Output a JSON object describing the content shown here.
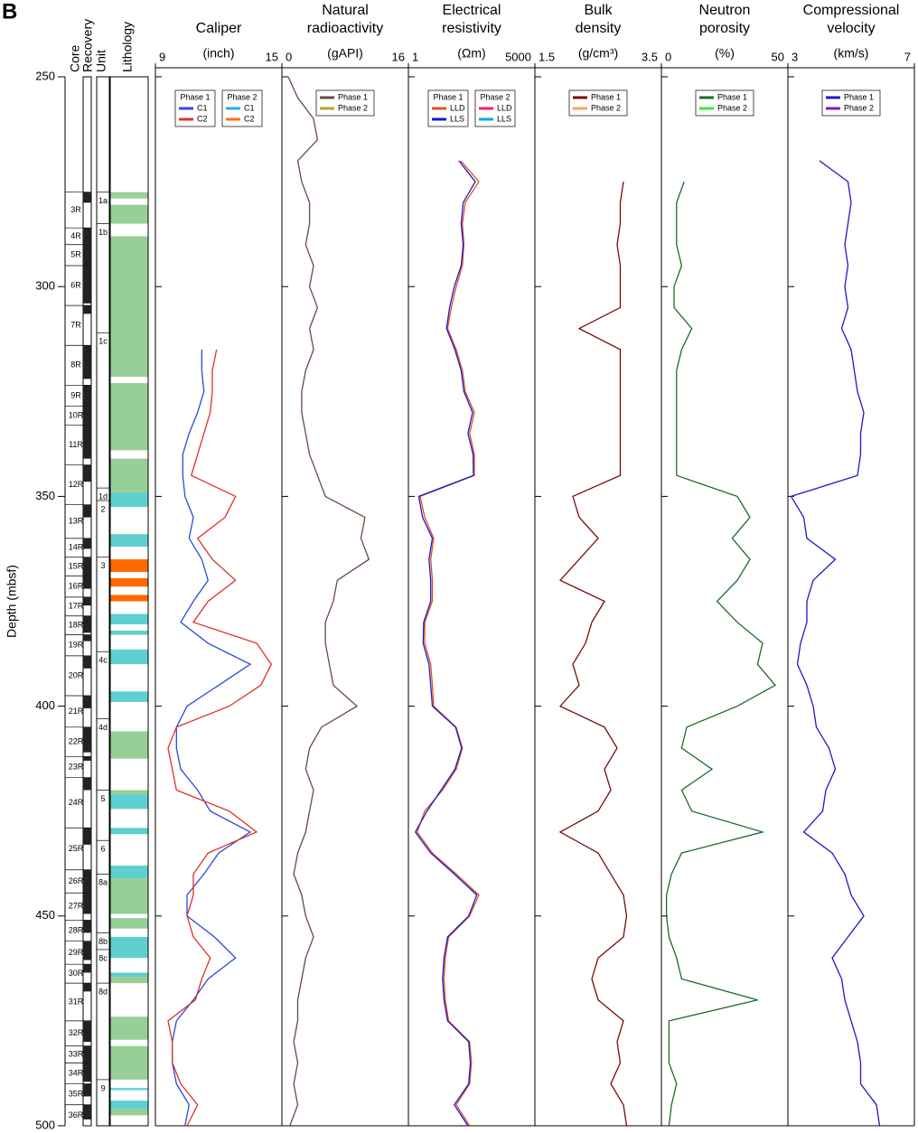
{
  "panel": "B",
  "chart_data": {
    "type": "well_log",
    "ylabel": "Depth (mbsf)",
    "ylim": [
      250,
      500
    ],
    "yticks": [
      250,
      300,
      350,
      400,
      450,
      500
    ],
    "column_headers": [
      "Core",
      "Recovery",
      "Unit",
      "Lithology"
    ],
    "depth": [
      250,
      255,
      260,
      265,
      270,
      275,
      280,
      285,
      290,
      295,
      300,
      305,
      310,
      315,
      320,
      325,
      330,
      335,
      340,
      345,
      350,
      355,
      360,
      365,
      370,
      375,
      380,
      385,
      390,
      395,
      400,
      405,
      410,
      415,
      420,
      425,
      430,
      435,
      440,
      445,
      450,
      455,
      460,
      465,
      470,
      475,
      480,
      485,
      490,
      495,
      500
    ],
    "cores": [
      {
        "label": "3R",
        "top": 277.5,
        "bottom": 286,
        "recovery": 2.5
      },
      {
        "label": "4R",
        "top": 286,
        "bottom": 290,
        "recovery": 4
      },
      {
        "label": "5R",
        "top": 290,
        "bottom": 295,
        "recovery": 5
      },
      {
        "label": "6R",
        "top": 295,
        "bottom": 304.5,
        "recovery": 9
      },
      {
        "label": "7R",
        "top": 304.5,
        "bottom": 314,
        "recovery": 2
      },
      {
        "label": "8R",
        "top": 314,
        "bottom": 323.5,
        "recovery": 8
      },
      {
        "label": "9R",
        "top": 323.5,
        "bottom": 328.5,
        "recovery": 5
      },
      {
        "label": "10R",
        "top": 328.5,
        "bottom": 333,
        "recovery": 4.5
      },
      {
        "label": "11R",
        "top": 333,
        "bottom": 342.5,
        "recovery": 8
      },
      {
        "label": "12R",
        "top": 342.5,
        "bottom": 352,
        "recovery": 4
      },
      {
        "label": "13R",
        "top": 352,
        "bottom": 360,
        "recovery": 3
      },
      {
        "label": "14R",
        "top": 360,
        "bottom": 364.5,
        "recovery": 2.5
      },
      {
        "label": "15R",
        "top": 364.5,
        "bottom": 369,
        "recovery": 4.5
      },
      {
        "label": "16R",
        "top": 369,
        "bottom": 374,
        "recovery": 3
      },
      {
        "label": "17R",
        "top": 374,
        "bottom": 378.5,
        "recovery": 2
      },
      {
        "label": "18R",
        "top": 378.5,
        "bottom": 383,
        "recovery": 4
      },
      {
        "label": "19R",
        "top": 383,
        "bottom": 388,
        "recovery": 1.5
      },
      {
        "label": "20R",
        "top": 388,
        "bottom": 397.5,
        "recovery": 3
      },
      {
        "label": "21R",
        "top": 397.5,
        "bottom": 405,
        "recovery": 3
      },
      {
        "label": "22R",
        "top": 405,
        "bottom": 412,
        "recovery": 6
      },
      {
        "label": "23R",
        "top": 412,
        "bottom": 417,
        "recovery": 1
      },
      {
        "label": "24R",
        "top": 417,
        "bottom": 429,
        "recovery": 3
      },
      {
        "label": "25R",
        "top": 429,
        "bottom": 439,
        "recovery": 4
      },
      {
        "label": "26R",
        "top": 439,
        "bottom": 444.5,
        "recovery": 5.5
      },
      {
        "label": "27R",
        "top": 444.5,
        "bottom": 451,
        "recovery": 5
      },
      {
        "label": "28R",
        "top": 451,
        "bottom": 456,
        "recovery": 3
      },
      {
        "label": "29R",
        "top": 456,
        "bottom": 461.5,
        "recovery": 4.5
      },
      {
        "label": "30R",
        "top": 461.5,
        "bottom": 466,
        "recovery": 2
      },
      {
        "label": "31R",
        "top": 466,
        "bottom": 475,
        "recovery": 2
      },
      {
        "label": "32R",
        "top": 475,
        "bottom": 481,
        "recovery": 5
      },
      {
        "label": "33R",
        "top": 481,
        "bottom": 485,
        "recovery": 4
      },
      {
        "label": "34R",
        "top": 485,
        "bottom": 490,
        "recovery": 4.5
      },
      {
        "label": "35R",
        "top": 490,
        "bottom": 495,
        "recovery": 3
      },
      {
        "label": "36R",
        "top": 495,
        "bottom": 500,
        "recovery": 3.5
      }
    ],
    "units": [
      {
        "label": "1a",
        "top": 277.5,
        "bottom": 285
      },
      {
        "label": "1b",
        "top": 285,
        "bottom": 311
      },
      {
        "label": "1c",
        "top": 311,
        "bottom": 348
      },
      {
        "label": "1d",
        "top": 348,
        "bottom": 351
      },
      {
        "label": "2",
        "top": 351,
        "bottom": 364.5
      },
      {
        "label": "3",
        "top": 364.5,
        "bottom": 387
      },
      {
        "label": "4c",
        "top": 387,
        "bottom": 403
      },
      {
        "label": "4d",
        "top": 403,
        "bottom": 420
      },
      {
        "label": "5",
        "top": 420,
        "bottom": 432
      },
      {
        "label": "6",
        "top": 432,
        "bottom": 440
      },
      {
        "label": "8a",
        "top": 440,
        "bottom": 454
      },
      {
        "label": "8b",
        "top": 454,
        "bottom": 458
      },
      {
        "label": "8c",
        "top": 458,
        "bottom": 466
      },
      {
        "label": "8d",
        "top": 466,
        "bottom": 489
      },
      {
        "label": "9",
        "top": 489,
        "bottom": 500
      }
    ],
    "lithology": [
      {
        "top": 277.5,
        "bottom": 279,
        "color": "#97cf97"
      },
      {
        "top": 280.5,
        "bottom": 285,
        "color": "#97cf97"
      },
      {
        "top": 288,
        "bottom": 321.5,
        "color": "#97cf97"
      },
      {
        "top": 323,
        "bottom": 339,
        "color": "#97cf97"
      },
      {
        "top": 341,
        "bottom": 349,
        "color": "#97cf97"
      },
      {
        "top": 349,
        "bottom": 352.5,
        "color": "#5fcfcf"
      },
      {
        "top": 359,
        "bottom": 362,
        "color": "#5fcfcf"
      },
      {
        "top": 365,
        "bottom": 368,
        "color": "#ff6a00"
      },
      {
        "top": 369.5,
        "bottom": 371.5,
        "color": "#ff6a00"
      },
      {
        "top": 373.5,
        "bottom": 375,
        "color": "#ff6a00"
      },
      {
        "top": 378,
        "bottom": 380.5,
        "color": "#5fcfcf"
      },
      {
        "top": 382,
        "bottom": 383,
        "color": "#5fcfcf"
      },
      {
        "top": 386.5,
        "bottom": 390,
        "color": "#5fcfcf"
      },
      {
        "top": 396.5,
        "bottom": 399,
        "color": "#5fcfcf"
      },
      {
        "top": 406,
        "bottom": 412.5,
        "color": "#97cf97"
      },
      {
        "top": 420,
        "bottom": 421,
        "color": "#97cf97"
      },
      {
        "top": 421,
        "bottom": 424.5,
        "color": "#5fcfcf"
      },
      {
        "top": 429,
        "bottom": 430.5,
        "color": "#5fcfcf"
      },
      {
        "top": 438,
        "bottom": 441,
        "color": "#5fcfcf"
      },
      {
        "top": 441,
        "bottom": 449.5,
        "color": "#97cf97"
      },
      {
        "top": 450.5,
        "bottom": 453,
        "color": "#97cf97"
      },
      {
        "top": 455,
        "bottom": 460,
        "color": "#5fcfcf"
      },
      {
        "top": 463.5,
        "bottom": 464.5,
        "color": "#5fcfcf"
      },
      {
        "top": 464.5,
        "bottom": 466,
        "color": "#97cf97"
      },
      {
        "top": 474,
        "bottom": 479.5,
        "color": "#97cf97"
      },
      {
        "top": 481,
        "bottom": 489,
        "color": "#97cf97"
      },
      {
        "top": 491,
        "bottom": 491.5,
        "color": "#5fcfcf"
      },
      {
        "top": 494,
        "bottom": 496,
        "color": "#5fcfcf"
      },
      {
        "top": 496,
        "bottom": 497.5,
        "color": "#97cf97"
      }
    ],
    "tracks": [
      {
        "title": [
          "Caliper"
        ],
        "unit": "(inch)",
        "xlim": [
          9,
          15
        ],
        "xticks": [
          9,
          15
        ],
        "series": [
          {
            "phase": "Phase 1",
            "name": "C1",
            "color": "#2a4bd8",
            "values": [
              null,
              null,
              null,
              null,
              null,
              null,
              null,
              null,
              null,
              null,
              null,
              null,
              null,
              11.2,
              11.2,
              11.3,
              11.0,
              10.6,
              10.3,
              10.3,
              10.4,
              10.8,
              10.6,
              11.2,
              11.5,
              10.8,
              10.2,
              11.5,
              13.5,
              12.0,
              10.5,
              10.0,
              10.0,
              10.2,
              11.0,
              11.6,
              13.5,
              12.0,
              11.3,
              10.5,
              10.5,
              11.8,
              12.8,
              11.5,
              10.8,
              10.0,
              9.8,
              9.8,
              10.0,
              10.6,
              10.4
            ]
          },
          {
            "phase": "Phase 1",
            "name": "C2",
            "color": "#e0302a",
            "values": [
              null,
              null,
              null,
              null,
              null,
              null,
              null,
              null,
              null,
              null,
              null,
              null,
              null,
              11.9,
              11.7,
              11.7,
              11.6,
              11.3,
              11.0,
              10.7,
              12.8,
              12.3,
              11.0,
              11.7,
              12.8,
              11.5,
              10.8,
              13.8,
              14.5,
              14.0,
              12.5,
              10.0,
              9.6,
              9.8,
              10.0,
              12.5,
              13.8,
              11.5,
              10.8,
              10.8,
              10.5,
              10.8,
              11.6,
              11.2,
              10.9,
              9.6,
              9.8,
              9.8,
              10.2,
              11.0,
              10.5
            ]
          },
          {
            "phase": "Phase 2",
            "name": "C1",
            "color": "#33a8f0"
          },
          {
            "phase": "Phase 2",
            "name": "C2",
            "color": "#ff6a1a"
          }
        ]
      },
      {
        "title": [
          "Natural",
          "radioactivity"
        ],
        "unit": "(gAPI)",
        "xlim": [
          0,
          16
        ],
        "xticks": [
          0,
          16
        ],
        "series": [
          {
            "name": "Phase 1",
            "color": "#6a4a3c",
            "values": [
              0.8,
              2.0,
              4.0,
              4.5,
              2.0,
              2.5,
              3.5,
              3.5,
              3.0,
              4.0,
              3.5,
              4.5,
              3.5,
              4.0,
              3.0,
              2.5,
              2.5,
              3.0,
              3.5,
              4.5,
              5.5,
              10.5,
              10.0,
              11.0,
              7.0,
              6.5,
              5.5,
              5.5,
              6.0,
              6.5,
              9.5,
              5.0,
              3.5,
              3.0,
              4.0,
              3.5,
              3.0,
              2.0,
              1.5,
              2.5,
              3.0,
              4.0,
              3.0,
              2.5,
              2.0,
              2.0,
              1.5,
              2.0,
              1.5,
              2.0,
              1.0
            ]
          },
          {
            "name": "Phase 2",
            "color": "#b8a030"
          }
        ]
      },
      {
        "title": [
          "Electrical",
          "resistivity"
        ],
        "unit": "(Ωm)",
        "xlim": [
          1,
          5000
        ],
        "xticks": [
          1,
          5000
        ],
        "scale": "log",
        "series": [
          {
            "phase": "Phase 1",
            "name": "LLD",
            "color": "#e05020",
            "values": [
              null,
              null,
              null,
              null,
              34,
              115,
              46,
              38,
              42,
              38,
              25,
              18,
              14,
              25,
              38,
              46,
              85,
              62,
              85,
              85,
              2.2,
              3,
              5.5,
              4.5,
              5,
              5,
              3,
              3,
              4.5,
              5,
              5.5,
              25,
              38,
              25,
              10,
              3,
              1.8,
              5,
              25,
              115,
              62,
              15,
              12,
              11,
              12,
              15,
              62,
              70,
              62,
              25,
              62
            ]
          },
          {
            "phase": "Phase 1",
            "name": "LLS",
            "color": "#1a1acc",
            "values": [
              null,
              null,
              null,
              null,
              30,
              90,
              40,
              35,
              40,
              35,
              22,
              16,
              13,
              23,
              35,
              42,
              75,
              55,
              78,
              80,
              2.0,
              2.6,
              5,
              4,
              4.5,
              4.5,
              2.8,
              2.7,
              4,
              4.5,
              5,
              24,
              36,
              23,
              9,
              3.5,
              1.6,
              4.5,
              22,
              100,
              58,
              14,
              11,
              10,
              11,
              14,
              58,
              65,
              58,
              22,
              55
            ]
          },
          {
            "phase": "Phase 2",
            "name": "LLD",
            "color": "#ff1a66"
          },
          {
            "phase": "Phase 2",
            "name": "LLS",
            "color": "#00aaee"
          }
        ]
      },
      {
        "title": [
          "Bulk",
          "density"
        ],
        "unit": "(g/cm³)",
        "xlim": [
          1.5,
          3.5
        ],
        "xticks": [
          1.5,
          3.5
        ],
        "series": [
          {
            "name": "Phase 1",
            "color": "#7a0a0a",
            "values": [
              null,
              null,
              null,
              null,
              null,
              2.9,
              2.85,
              2.85,
              2.8,
              2.85,
              2.85,
              2.85,
              2.2,
              2.85,
              2.85,
              2.85,
              2.85,
              2.85,
              2.85,
              2.85,
              2.1,
              2.2,
              2.5,
              2.2,
              1.9,
              2.6,
              2.4,
              2.3,
              2.1,
              2.2,
              1.9,
              2.6,
              2.8,
              2.6,
              2.7,
              2.5,
              1.9,
              2.5,
              2.7,
              2.9,
              2.95,
              2.9,
              2.5,
              2.4,
              2.5,
              2.9,
              2.8,
              2.85,
              2.7,
              2.9,
              2.95
            ]
          },
          {
            "name": "Phase 2",
            "color": "#ffa050"
          }
        ]
      },
      {
        "title": [
          "Neutron",
          "porosity"
        ],
        "unit": "(%)",
        "xlim": [
          0,
          50
        ],
        "xticks": [
          0,
          50
        ],
        "series": [
          {
            "name": "Phase 1",
            "color": "#1a6b2a",
            "values": [
              null,
              null,
              null,
              null,
              null,
              9,
              6,
              6,
              6,
              8,
              5,
              5,
              12,
              8,
              6,
              6,
              6,
              6,
              6,
              6,
              30,
              35,
              28,
              35,
              30,
              22,
              30,
              40,
              38,
              45,
              30,
              10,
              8,
              20,
              8,
              12,
              40,
              8,
              4,
              2,
              2,
              3,
              6,
              8,
              38,
              3,
              3,
              3,
              6,
              4,
              3
            ]
          },
          {
            "name": "Phase 2",
            "color": "#33ee33"
          }
        ]
      },
      {
        "title": [
          "Compressional",
          "velocity"
        ],
        "unit": "(km/s)",
        "xlim": [
          3,
          7
        ],
        "xticks": [
          3,
          7
        ],
        "series": [
          {
            "name": "Phase 1",
            "color": "#1a1acc",
            "values": [
              null,
              null,
              null,
              null,
              4.0,
              4.9,
              5.0,
              4.9,
              4.8,
              4.9,
              4.8,
              4.9,
              4.7,
              5.0,
              5.1,
              5.2,
              5.4,
              5.3,
              5.3,
              5.2,
              3.1,
              3.5,
              3.6,
              4.5,
              3.8,
              3.6,
              3.6,
              3.4,
              3.3,
              3.6,
              3.8,
              3.9,
              4.3,
              4.5,
              4.2,
              4.1,
              3.5,
              4.4,
              4.8,
              5.0,
              5.4,
              4.9,
              4.4,
              4.7,
              4.8,
              5.0,
              5.2,
              5.3,
              5.3,
              5.8,
              5.9
            ]
          },
          {
            "name": "Phase 2",
            "color": "#7a1acc"
          }
        ]
      }
    ]
  }
}
